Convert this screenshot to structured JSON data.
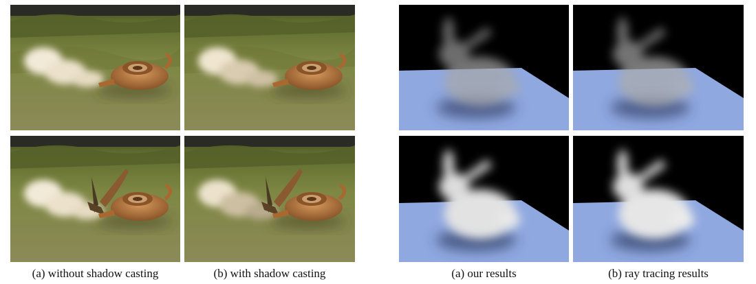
{
  "figure": {
    "left_group": {
      "captions": {
        "a": "(a) without shadow casting",
        "b": "(b) with shadow casting"
      }
    },
    "right_group": {
      "captions": {
        "a": "(a) our results",
        "b": "(b) ray tracing results"
      }
    }
  },
  "colors": {
    "terrain": "#6f7a38",
    "sky_dark": "#2a2a28",
    "lamp": "#b5773f",
    "smoke": "#efe6d2",
    "floor": "#8fa8e0",
    "background_black": "#000000"
  }
}
